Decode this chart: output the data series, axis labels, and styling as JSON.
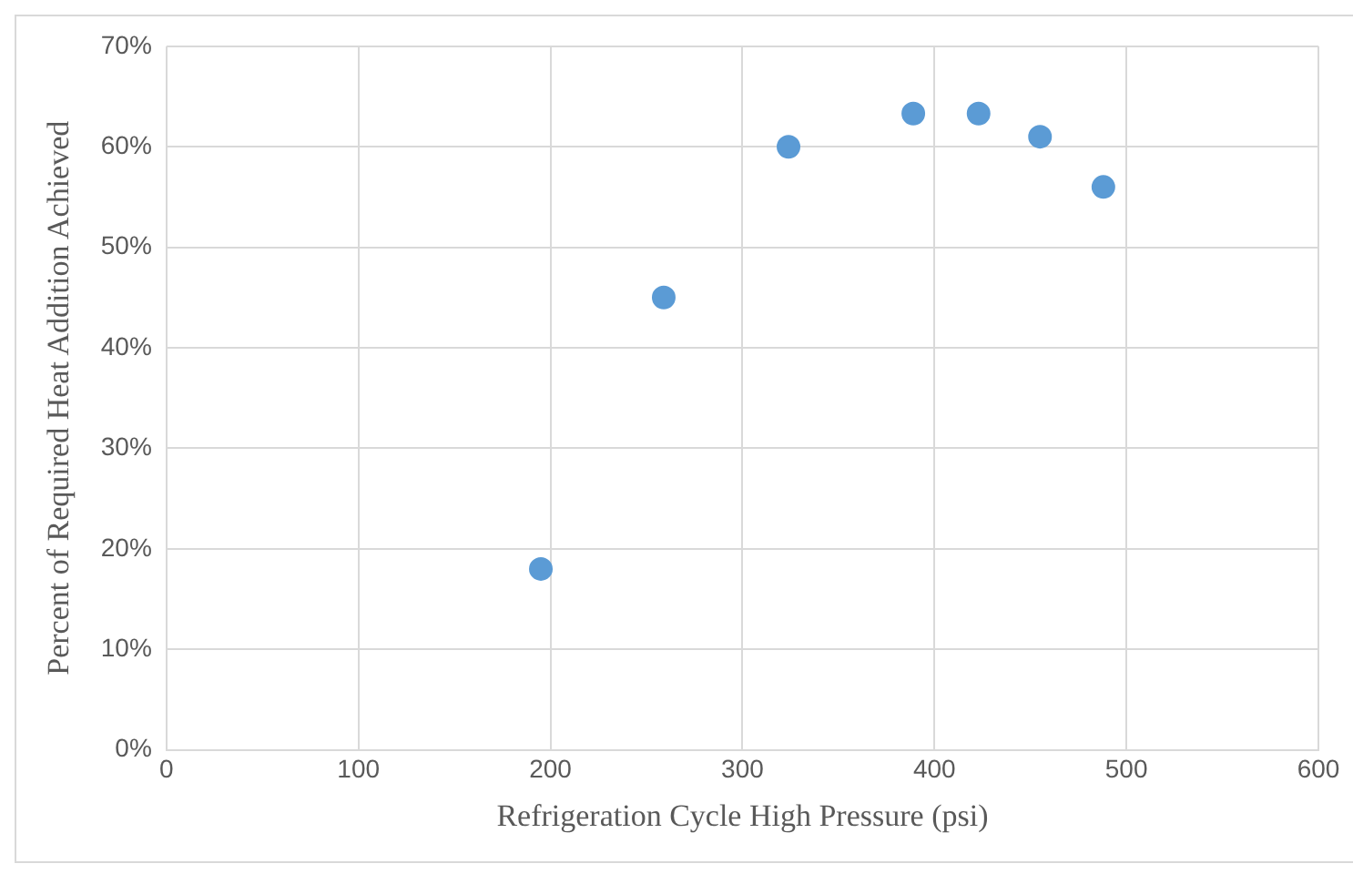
{
  "chart_data": {
    "type": "scatter",
    "xlabel": "Refrigeration Cycle High Pressure (psi)",
    "ylabel": "Percent of Required Heat Addition Achieved",
    "x": [
      195,
      259,
      324,
      389,
      423,
      455,
      488
    ],
    "values": [
      18,
      45,
      60,
      63.3,
      63.3,
      61,
      56
    ],
    "color": "#5b9bd5",
    "marker": "circle",
    "grid": true,
    "legend": false,
    "xlim": [
      0,
      600
    ],
    "xticks": [
      0,
      100,
      200,
      300,
      400,
      500,
      600
    ],
    "ylim": [
      0,
      70
    ],
    "yticks": [
      {
        "value": 0,
        "label": "0%"
      },
      {
        "value": 10,
        "label": "10%"
      },
      {
        "value": 20,
        "label": "20%"
      },
      {
        "value": 30,
        "label": "30%"
      },
      {
        "value": 40,
        "label": "40%"
      },
      {
        "value": 50,
        "label": "50%"
      },
      {
        "value": 60,
        "label": "60%"
      },
      {
        "value": 70,
        "label": "70%"
      }
    ]
  }
}
